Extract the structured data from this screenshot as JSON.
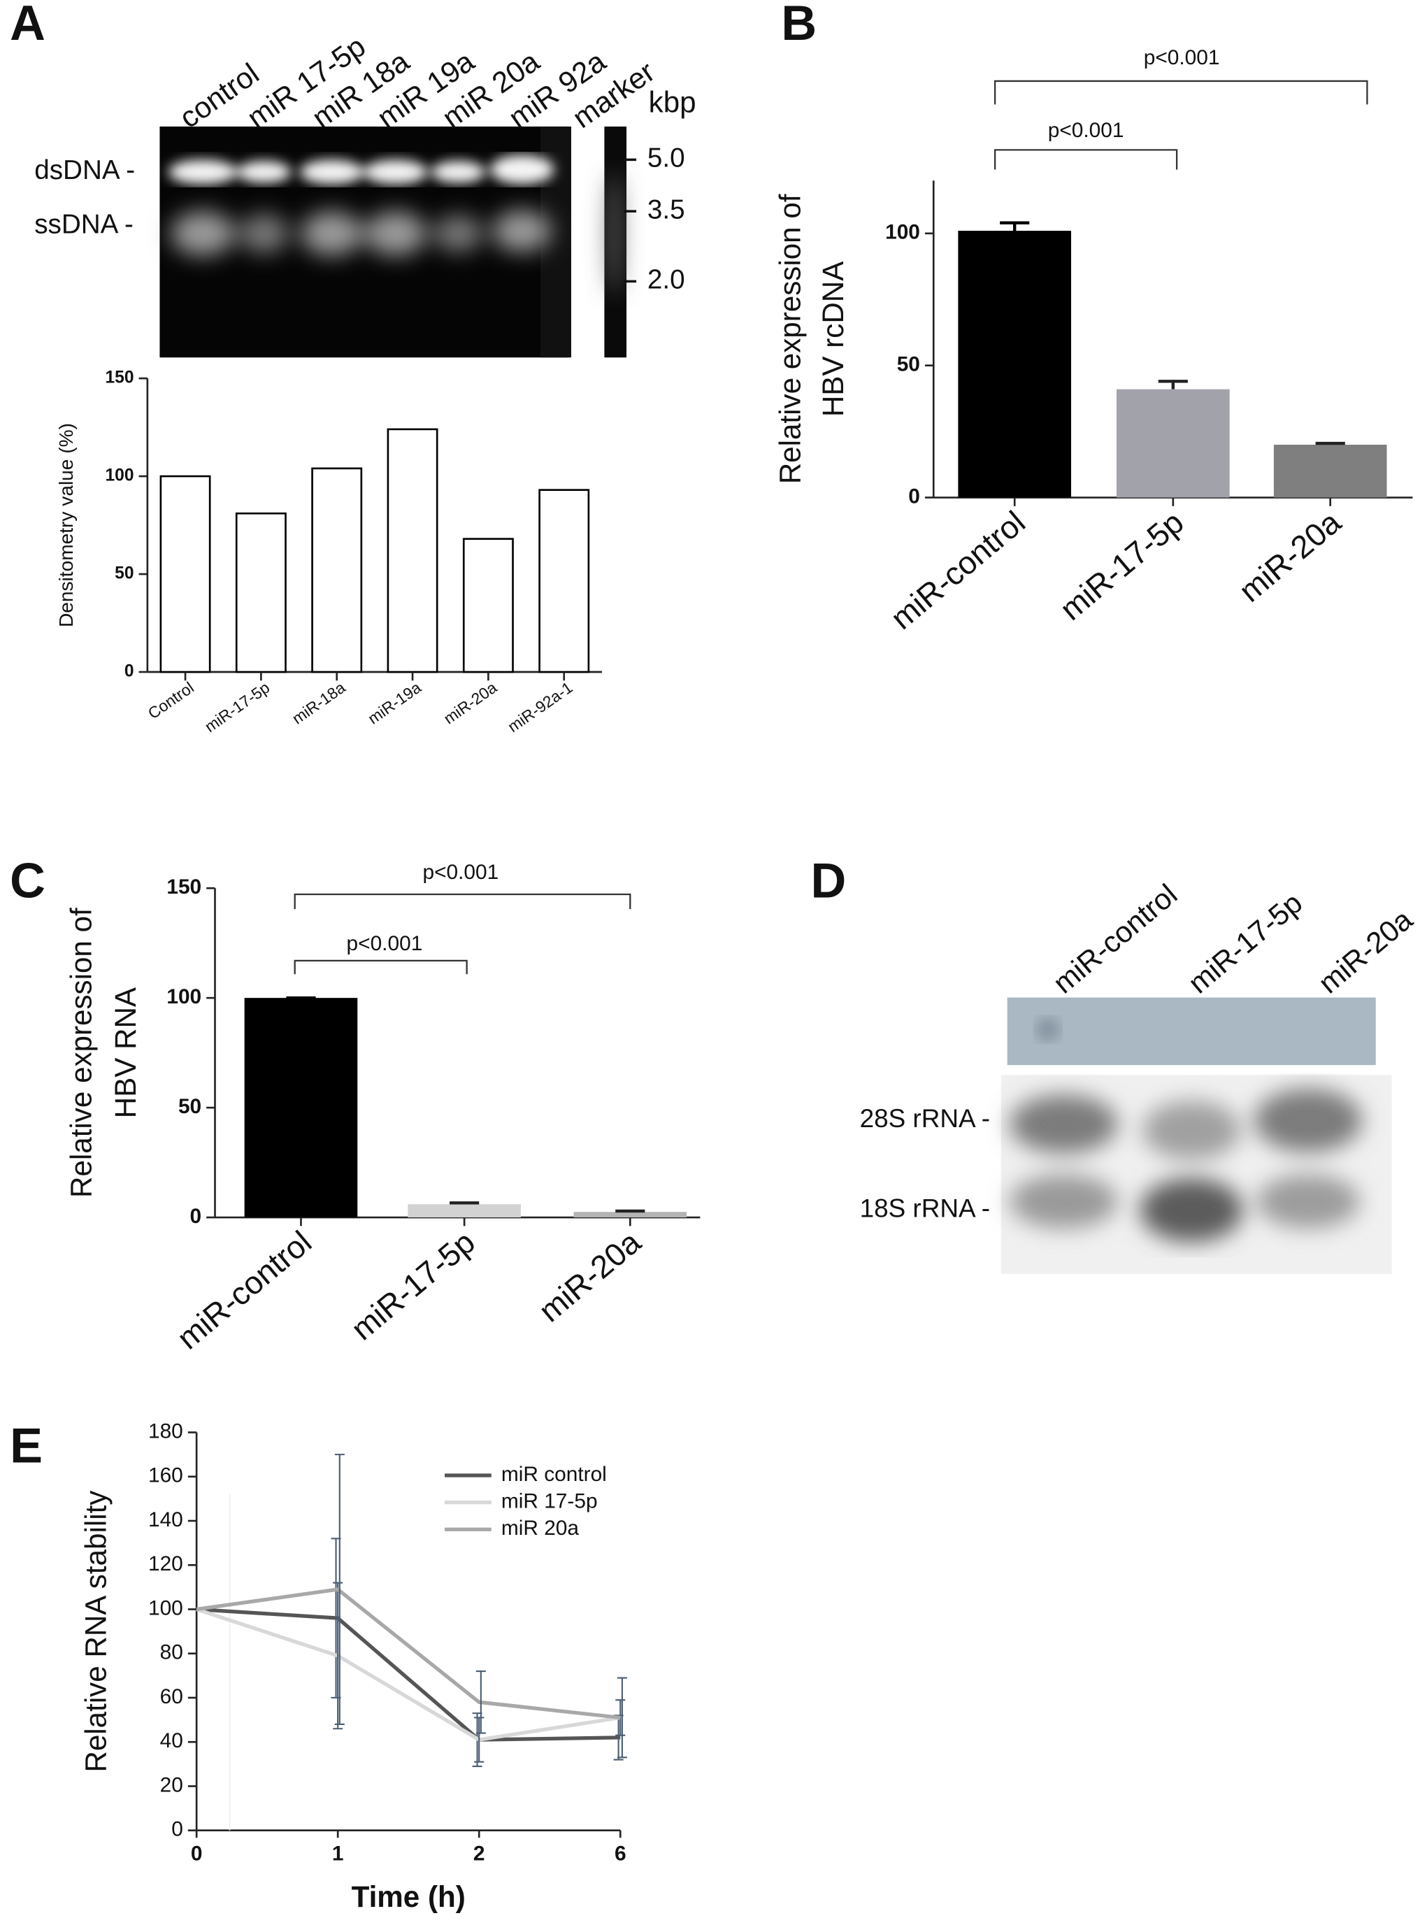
{
  "panel_labels": [
    "A",
    "B",
    "C",
    "D",
    "E"
  ],
  "gel_a": {
    "lanes": [
      "control",
      "miR 17-5p",
      "miR 18a",
      "miR 19a",
      "miR 20a",
      "miR 92a",
      "marker"
    ],
    "unit": "kbp",
    "marker_sizes": [
      "5.0",
      "3.5",
      "2.0"
    ],
    "band_labels": [
      "dsDNA -",
      "ssDNA -"
    ]
  },
  "gel_d": {
    "lanes": [
      "miR-control",
      "miR-17-5p",
      "miR-20a"
    ],
    "band_labels": [
      "28S rRNA -",
      "18S rRNA -"
    ]
  },
  "chart_data": [
    {
      "type": "bar",
      "categories": [
        "Control",
        "miR-17-5p",
        "miR-18a",
        "miR-19a",
        "miR-20a",
        "miR-92a-1"
      ],
      "values": [
        100,
        81,
        104,
        124,
        68,
        93
      ],
      "color": "#ffffff",
      "y_label": [
        "Densitometry value (%)"
      ],
      "ylim": [
        0,
        150
      ],
      "yticks": [
        0,
        50,
        100,
        150
      ]
    },
    {
      "type": "bar",
      "categories": [
        "miR-control",
        "miR-17-5p",
        "miR-20a"
      ],
      "values": [
        101,
        41,
        20
      ],
      "errors": [
        3,
        3,
        0.5
      ],
      "colors": [
        "#000000",
        "#a2a2aa",
        "#7f7f7f"
      ],
      "y_label": [
        "Relative expression of",
        "HBV rcDNA"
      ],
      "annotations": [
        "p<0.001",
        "p<0.001"
      ],
      "ylim": [
        0,
        120
      ],
      "yticks": [
        0,
        50,
        100
      ]
    },
    {
      "type": "bar",
      "categories": [
        "miR-control",
        "miR-17-5p",
        "miR-20a"
      ],
      "values": [
        100,
        6,
        2.5
      ],
      "errors": [
        0,
        0.6,
        0.4
      ],
      "colors": [
        "#000000",
        "#d2d2d2",
        "#b4b4b4"
      ],
      "y_label": [
        "Relative expression of",
        "HBV RNA"
      ],
      "annotations": [
        "p<0.001",
        "p<0.001"
      ],
      "ylim": [
        0,
        150
      ],
      "yticks": [
        0,
        50,
        100,
        150
      ]
    },
    {
      "type": "line",
      "categories": [
        "0",
        "1",
        "2",
        "6"
      ],
      "x_label": "Time (h)",
      "y_label": [
        "Relative RNA stability"
      ],
      "series": [
        {
          "name": "miR control",
          "color": "#555555",
          "values": [
            100,
            96,
            41,
            42
          ],
          "errors": [
            0,
            36,
            12,
            10
          ]
        },
        {
          "name": "miR 17-5p",
          "color": "#d8d8d8",
          "values": [
            100,
            79,
            41,
            51
          ],
          "errors": [
            0,
            33,
            10,
            8
          ]
        },
        {
          "name": "miR 20a",
          "color": "#a8a8a8",
          "values": [
            100,
            109,
            58,
            51
          ],
          "errors": [
            0,
            61,
            14,
            18
          ]
        }
      ],
      "ylim": [
        0,
        180
      ],
      "yticks": [
        0,
        20,
        40,
        60,
        80,
        100,
        120,
        140,
        160,
        180
      ]
    }
  ]
}
